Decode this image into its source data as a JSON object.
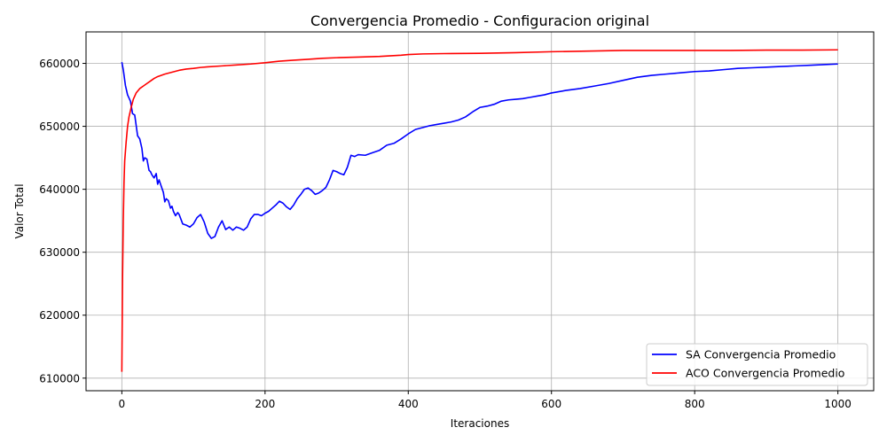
{
  "chart_data": {
    "type": "line",
    "title": "Convergencia Promedio - Configuracion original",
    "xlabel": "Iteraciones",
    "ylabel": "Valor Total",
    "xlim": [
      -50,
      1050
    ],
    "ylim": [
      608000,
      665000
    ],
    "xticks": [
      0,
      200,
      400,
      600,
      800,
      1000
    ],
    "yticks": [
      610000,
      620000,
      630000,
      640000,
      650000,
      660000
    ],
    "grid": true,
    "legend_position": "bottom-right",
    "series": [
      {
        "name": "SA Convergencia Promedio",
        "color": "#0000ff",
        "x": [
          0,
          2,
          5,
          8,
          12,
          15,
          18,
          22,
          25,
          28,
          30,
          32,
          35,
          38,
          40,
          42,
          45,
          48,
          50,
          52,
          55,
          58,
          60,
          62,
          65,
          68,
          70,
          72,
          75,
          78,
          80,
          85,
          90,
          95,
          100,
          105,
          110,
          115,
          120,
          125,
          130,
          135,
          140,
          145,
          150,
          155,
          160,
          165,
          170,
          175,
          180,
          185,
          190,
          195,
          200,
          205,
          210,
          215,
          220,
          225,
          230,
          235,
          240,
          245,
          250,
          255,
          260,
          265,
          270,
          275,
          280,
          285,
          290,
          295,
          300,
          305,
          310,
          315,
          320,
          325,
          330,
          340,
          350,
          360,
          370,
          380,
          390,
          400,
          410,
          420,
          430,
          440,
          450,
          460,
          470,
          480,
          490,
          500,
          510,
          520,
          530,
          540,
          550,
          560,
          570,
          580,
          590,
          600,
          620,
          640,
          660,
          680,
          700,
          720,
          740,
          760,
          780,
          800,
          820,
          840,
          860,
          880,
          900,
          920,
          940,
          960,
          980,
          1000
        ],
        "y": [
          660200,
          659000,
          656500,
          655000,
          654000,
          652000,
          651800,
          648500,
          648000,
          646500,
          644500,
          645000,
          644800,
          643000,
          642800,
          642300,
          641800,
          642500,
          640800,
          641500,
          640500,
          639500,
          638000,
          638500,
          638200,
          637000,
          637300,
          636500,
          635800,
          636300,
          636000,
          634500,
          634300,
          634000,
          634500,
          635500,
          636000,
          634800,
          633000,
          632200,
          632500,
          634000,
          635000,
          633600,
          634000,
          633500,
          634000,
          633800,
          633500,
          634000,
          635300,
          636000,
          636000,
          635800,
          636200,
          636500,
          637000,
          637500,
          638100,
          637800,
          637200,
          636800,
          637500,
          638500,
          639200,
          640000,
          640200,
          639800,
          639200,
          639400,
          639800,
          640300,
          641500,
          643000,
          642800,
          642500,
          642300,
          643500,
          645400,
          645200,
          645500,
          645400,
          645800,
          646200,
          647000,
          647300,
          648000,
          648800,
          649500,
          649800,
          650100,
          650300,
          650500,
          650700,
          651000,
          651500,
          652300,
          653000,
          653200,
          653500,
          654000,
          654200,
          654300,
          654400,
          654600,
          654800,
          655000,
          655300,
          655700,
          656000,
          656400,
          656800,
          657300,
          657800,
          658100,
          658300,
          658500,
          658700,
          658800,
          659000,
          659200,
          659300,
          659400,
          659500,
          659600,
          659700,
          659800,
          659900
        ]
      },
      {
        "name": "ACO Convergencia Promedio",
        "color": "#ff0000",
        "x": [
          0,
          1,
          2,
          3,
          4,
          6,
          8,
          10,
          13,
          16,
          20,
          25,
          30,
          35,
          40,
          45,
          50,
          60,
          70,
          80,
          90,
          100,
          110,
          120,
          140,
          160,
          180,
          200,
          220,
          240,
          260,
          280,
          300,
          330,
          360,
          390,
          400,
          420,
          450,
          500,
          550,
          600,
          650,
          700,
          750,
          800,
          850,
          900,
          950,
          1000
        ],
        "y": [
          611000,
          626000,
          635000,
          641000,
          644500,
          647500,
          650000,
          651500,
          653000,
          654300,
          655300,
          656000,
          656400,
          656800,
          657200,
          657600,
          657900,
          658300,
          658600,
          658900,
          659100,
          659200,
          659350,
          659450,
          659600,
          659750,
          659900,
          660100,
          660350,
          660500,
          660650,
          660800,
          660900,
          661000,
          661100,
          661300,
          661400,
          661500,
          661550,
          661600,
          661700,
          661850,
          661950,
          662050,
          662050,
          662050,
          662050,
          662100,
          662100,
          662150
        ]
      }
    ]
  }
}
